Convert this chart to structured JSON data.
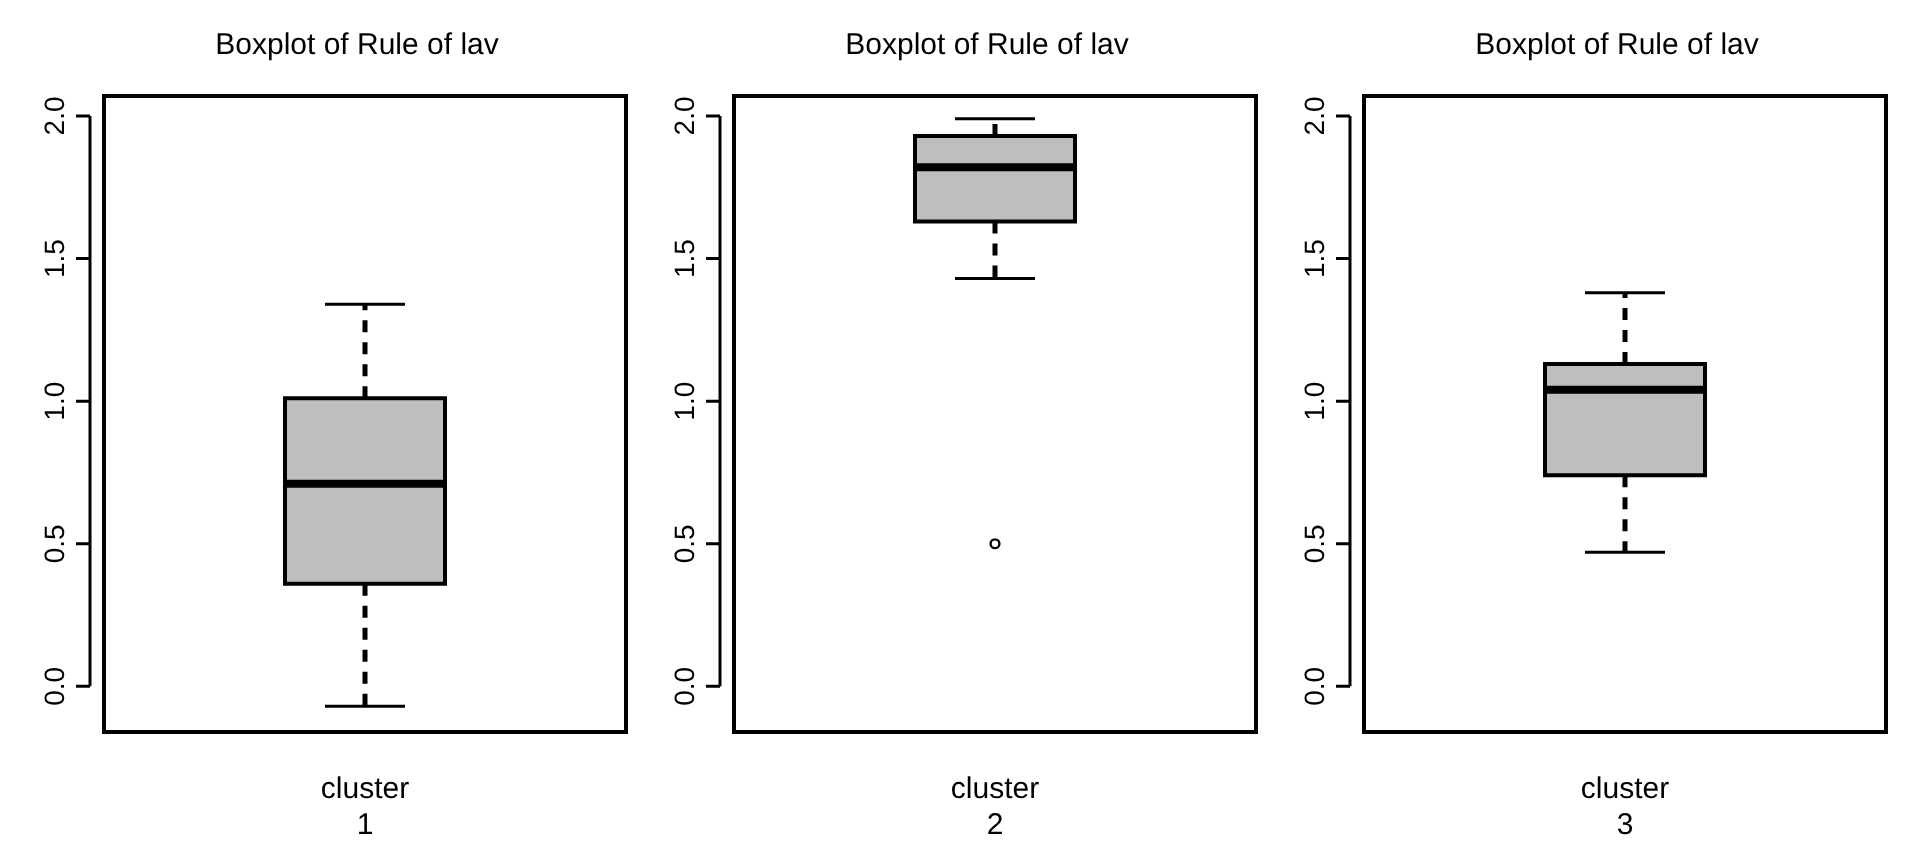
{
  "chart_data": [
    {
      "type": "box",
      "title": "Boxplot of Rule of lav",
      "categories": [
        "cluster 1"
      ],
      "ylim": [
        -0.16,
        2.07
      ],
      "yticks": [
        {
          "value": 0,
          "label": "0.0"
        },
        {
          "value": 0.5,
          "label": "0.5"
        },
        {
          "value": 1,
          "label": "1.0"
        },
        {
          "value": 1.5,
          "label": "1.5"
        },
        {
          "value": 2,
          "label": "2.0"
        }
      ],
      "color": "#bebebe",
      "boxes": [
        {
          "low": -0.07,
          "q1": 0.36,
          "median": 0.71,
          "q3": 1.01,
          "high": 1.34
        }
      ]
    },
    {
      "type": "box",
      "title": "Boxplot of Rule of lav",
      "categories": [
        "cluster 2"
      ],
      "ylim": [
        -0.16,
        2.07
      ],
      "yticks": [
        {
          "value": 0,
          "label": "0.0"
        },
        {
          "value": 0.5,
          "label": "0.5"
        },
        {
          "value": 1,
          "label": "1.0"
        },
        {
          "value": 1.5,
          "label": "1.5"
        },
        {
          "value": 2,
          "label": "2.0"
        }
      ],
      "color": "#bebebe",
      "boxes": [
        {
          "low": 1.43,
          "q1": 1.63,
          "median": 1.82,
          "q3": 1.93,
          "high": 1.99,
          "outliers": [
            0.5
          ]
        }
      ]
    },
    {
      "type": "box",
      "title": "Boxplot of Rule of lav",
      "categories": [
        "cluster 3"
      ],
      "ylim": [
        -0.16,
        2.07
      ],
      "yticks": [
        {
          "value": 0,
          "label": "0.0"
        },
        {
          "value": 0.5,
          "label": "0.5"
        },
        {
          "value": 1,
          "label": "1.0"
        },
        {
          "value": 1.5,
          "label": "1.5"
        },
        {
          "value": 2,
          "label": "2.0"
        }
      ],
      "color": "#bebebe",
      "boxes": [
        {
          "low": 0.47,
          "q1": 0.74,
          "median": 1.04,
          "q3": 1.13,
          "high": 1.38
        }
      ]
    }
  ]
}
